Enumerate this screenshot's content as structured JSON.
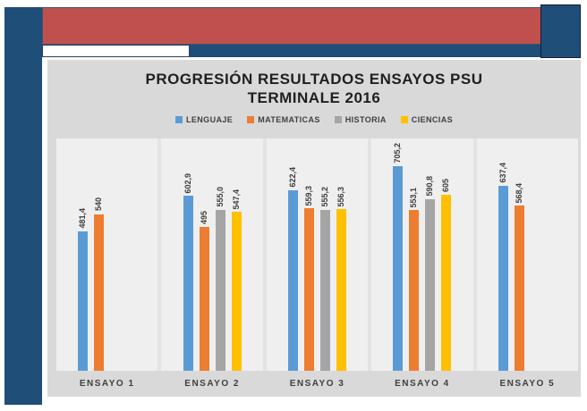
{
  "decor": {
    "navy": "#1F4E79",
    "red": "#C0504D",
    "panel_gray": "#D9D9D9",
    "plot_bg": "#EFEFEF"
  },
  "header": {
    "title_line1": "PROGRESIÓN RESULTADOS ENSAYOS PSU",
    "title_line2": "TERMINALE 2016"
  },
  "chart_data": {
    "type": "bar",
    "title": "PROGRESIÓN RESULTADOS ENSAYOS PSU TERMINALE 2016",
    "categories": [
      "ENSAYO 1",
      "ENSAYO 2",
      "ENSAYO 3",
      "ENSAYO 4",
      "ENSAYO 5"
    ],
    "series": [
      {
        "name": "LENGUAJE",
        "color": "#5B9BD5",
        "values": [
          481.4,
          602.9,
          622.4,
          705.2,
          637.4
        ],
        "labels": [
          "481,4",
          "602,9",
          "622,4",
          "705,2",
          "637,4"
        ]
      },
      {
        "name": "MATEMATICAS",
        "color": "#ED7D31",
        "values": [
          540,
          495,
          559.3,
          553.1,
          568.4
        ],
        "labels": [
          "540",
          "495",
          "559,3",
          "553,1",
          "568,4"
        ]
      },
      {
        "name": "HISTORIA",
        "color": "#A5A5A5",
        "values": [
          null,
          555.0,
          555.2,
          590.8,
          null
        ],
        "labels": [
          null,
          "555,0",
          "555,2",
          "590,8",
          null
        ]
      },
      {
        "name": "CIENCIAS",
        "color": "#FFC000",
        "values": [
          null,
          547.4,
          556.3,
          605,
          null
        ],
        "labels": [
          null,
          "547,4",
          "556,3",
          "605",
          null
        ]
      }
    ],
    "ylim": [
      0,
      800
    ],
    "yaxis_visible": false,
    "grid": "vertical category separators only",
    "legend_position": "top",
    "data_labels": "rotated 90 degrees, outside end, comma decimal separator"
  }
}
